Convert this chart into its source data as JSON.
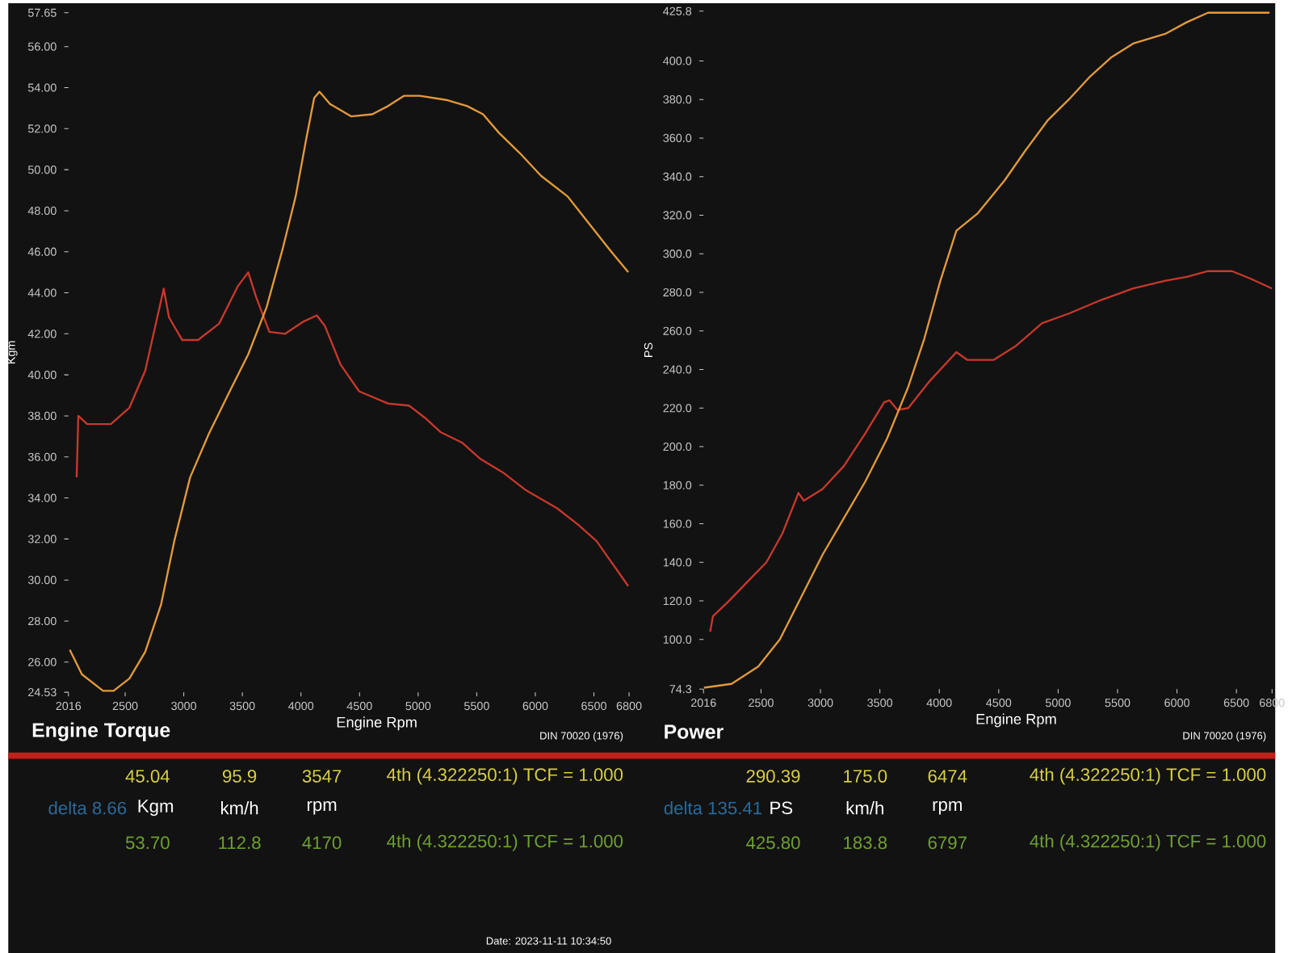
{
  "chart_data": [
    {
      "type": "line",
      "title": "Engine Torque",
      "xlabel": "Engine Rpm",
      "ylabel": "Kgm",
      "xlim": [
        2016,
        6800
      ],
      "xticks": [
        2016,
        2500,
        3000,
        3500,
        4000,
        4500,
        5000,
        5500,
        6000,
        6500,
        6800
      ],
      "ylim": [
        24.53,
        57.65
      ],
      "yticks": [
        {
          "value": 24.53,
          "label": "24.53"
        },
        {
          "value": 26,
          "label": "26.00"
        },
        {
          "value": 28,
          "label": "28.00"
        },
        {
          "value": 30,
          "label": "30.00"
        },
        {
          "value": 32,
          "label": "32.00"
        },
        {
          "value": 34,
          "label": "34.00"
        },
        {
          "value": 36,
          "label": "36.00"
        },
        {
          "value": 38,
          "label": "38.00"
        },
        {
          "value": 40,
          "label": "40.00"
        },
        {
          "value": 42,
          "label": "42.00"
        },
        {
          "value": 44,
          "label": "44.00"
        },
        {
          "value": 46,
          "label": "46.00"
        },
        {
          "value": 48,
          "label": "48.00"
        },
        {
          "value": 50,
          "label": "50.00"
        },
        {
          "value": 52,
          "label": "52.00"
        },
        {
          "value": 54,
          "label": "54.00"
        },
        {
          "value": 56,
          "label": "56.00"
        },
        {
          "value": 57.65,
          "label": "57.65"
        }
      ],
      "series": [
        {
          "color": "#c8382c",
          "x": [
            2086,
            2100,
            2176,
            2378,
            2536,
            2671,
            2829,
            2874,
            2986,
            3122,
            3302,
            3459,
            3550,
            3617,
            3730,
            3865,
            4022,
            4135,
            4203,
            4338,
            4496,
            4743,
            4923,
            5059,
            5194,
            5374,
            5532,
            5734,
            5914,
            6185,
            6365,
            6522,
            6658,
            6793
          ],
          "values": [
            35.0,
            38.0,
            37.6,
            37.6,
            38.4,
            40.2,
            44.2,
            42.8,
            41.7,
            41.7,
            42.5,
            44.3,
            45.0,
            43.8,
            42.1,
            42.0,
            42.6,
            42.9,
            42.4,
            40.5,
            39.2,
            38.6,
            38.5,
            37.9,
            37.2,
            36.7,
            35.9,
            35.2,
            34.4,
            33.5,
            32.7,
            31.9,
            30.8,
            29.7
          ]
        },
        {
          "color": "#e39a3a",
          "x": [
            2027,
            2131,
            2311,
            2401,
            2536,
            2671,
            2806,
            2919,
            3054,
            3212,
            3392,
            3550,
            3707,
            3842,
            3955,
            4045,
            4113,
            4158,
            4248,
            4428,
            4608,
            4743,
            4878,
            5014,
            5239,
            5419,
            5554,
            5689,
            5869,
            6049,
            6275,
            6455,
            6635,
            6793
          ],
          "values": [
            26.6,
            25.4,
            24.6,
            24.6,
            25.2,
            26.5,
            28.8,
            31.9,
            35.0,
            37.1,
            39.2,
            41.0,
            43.3,
            46.1,
            48.7,
            51.5,
            53.5,
            53.8,
            53.2,
            52.6,
            52.7,
            53.1,
            53.6,
            53.6,
            53.4,
            53.1,
            52.7,
            51.8,
            50.8,
            49.7,
            48.7,
            47.4,
            46.1,
            45.0
          ]
        }
      ],
      "annotations": [
        "DIN 70020 (1976)",
        "45.04",
        "95.9",
        "3547",
        "4th (4.322250:1) TCF = 1.000",
        "delta 8.66",
        "Kgm",
        "km/h",
        "rpm",
        "53.70",
        "112.8",
        "4170",
        "4th (4.322250:1) TCF = 1.000",
        "Date: 2023-11-11 10:34:50"
      ]
    },
    {
      "type": "line",
      "title": "Power",
      "xlabel": "Engine Rpm",
      "ylabel": "PS",
      "xlim": [
        2016,
        6800
      ],
      "xticks": [
        2016,
        2500,
        3000,
        3500,
        4000,
        4500,
        5000,
        5500,
        6000,
        6500,
        6800
      ],
      "ylim": [
        74.3,
        425.8
      ],
      "yticks": [
        {
          "value": 74.3,
          "label": "74.3"
        },
        {
          "value": 100,
          "label": "100.0"
        },
        {
          "value": 120,
          "label": "120.0"
        },
        {
          "value": 140,
          "label": "140.0"
        },
        {
          "value": 160,
          "label": "160.0"
        },
        {
          "value": 180,
          "label": "180.0"
        },
        {
          "value": 200,
          "label": "200.0"
        },
        {
          "value": 220,
          "label": "220.0"
        },
        {
          "value": 240,
          "label": "240.0"
        },
        {
          "value": 260,
          "label": "260.0"
        },
        {
          "value": 280,
          "label": "280.0"
        },
        {
          "value": 300,
          "label": "300.0"
        },
        {
          "value": 320,
          "label": "320.0"
        },
        {
          "value": 340,
          "label": "340.0"
        },
        {
          "value": 360,
          "label": "360.0"
        },
        {
          "value": 380,
          "label": "380.0"
        },
        {
          "value": 400,
          "label": "400.0"
        },
        {
          "value": 425.8,
          "label": "425.8"
        }
      ],
      "series": [
        {
          "color": "#c8382c",
          "x": [
            2072,
            2095,
            2230,
            2387,
            2545,
            2680,
            2815,
            2860,
            3018,
            3198,
            3378,
            3536,
            3581,
            3649,
            3739,
            3919,
            4144,
            4234,
            4459,
            4640,
            4865,
            5090,
            5360,
            5631,
            5901,
            6081,
            6261,
            6464,
            6622,
            6800
          ],
          "values": [
            104,
            112,
            120,
            130,
            140,
            155,
            176,
            172,
            178,
            190,
            207,
            223,
            224,
            219,
            220,
            234,
            249,
            245,
            245,
            252,
            264,
            269,
            276,
            282,
            286,
            288,
            291,
            291,
            287,
            282
          ]
        },
        {
          "color": "#e39a3a",
          "x": [
            2020,
            2252,
            2477,
            2658,
            2838,
            3018,
            3198,
            3378,
            3559,
            3739,
            3874,
            4009,
            4144,
            4324,
            4549,
            4730,
            4910,
            5090,
            5270,
            5450,
            5631,
            5901,
            6081,
            6261,
            6441,
            6622,
            6779
          ],
          "values": [
            75,
            77,
            86,
            100,
            122,
            144,
            163,
            182,
            204,
            231,
            256,
            286,
            312,
            321,
            338,
            354,
            369,
            380,
            392,
            402,
            409,
            414,
            420,
            425,
            425,
            425,
            425
          ]
        }
      ],
      "annotations": [
        "DIN 70020 (1976)",
        "290.39",
        "175.0",
        "6474",
        "4th (4.322250:1) TCF = 1.000",
        "delta 135.41",
        "PS",
        "km/h",
        "rpm",
        "425.80",
        "183.8",
        "6797",
        "4th (4.322250:1) TCF = 1.000"
      ]
    }
  ]
}
